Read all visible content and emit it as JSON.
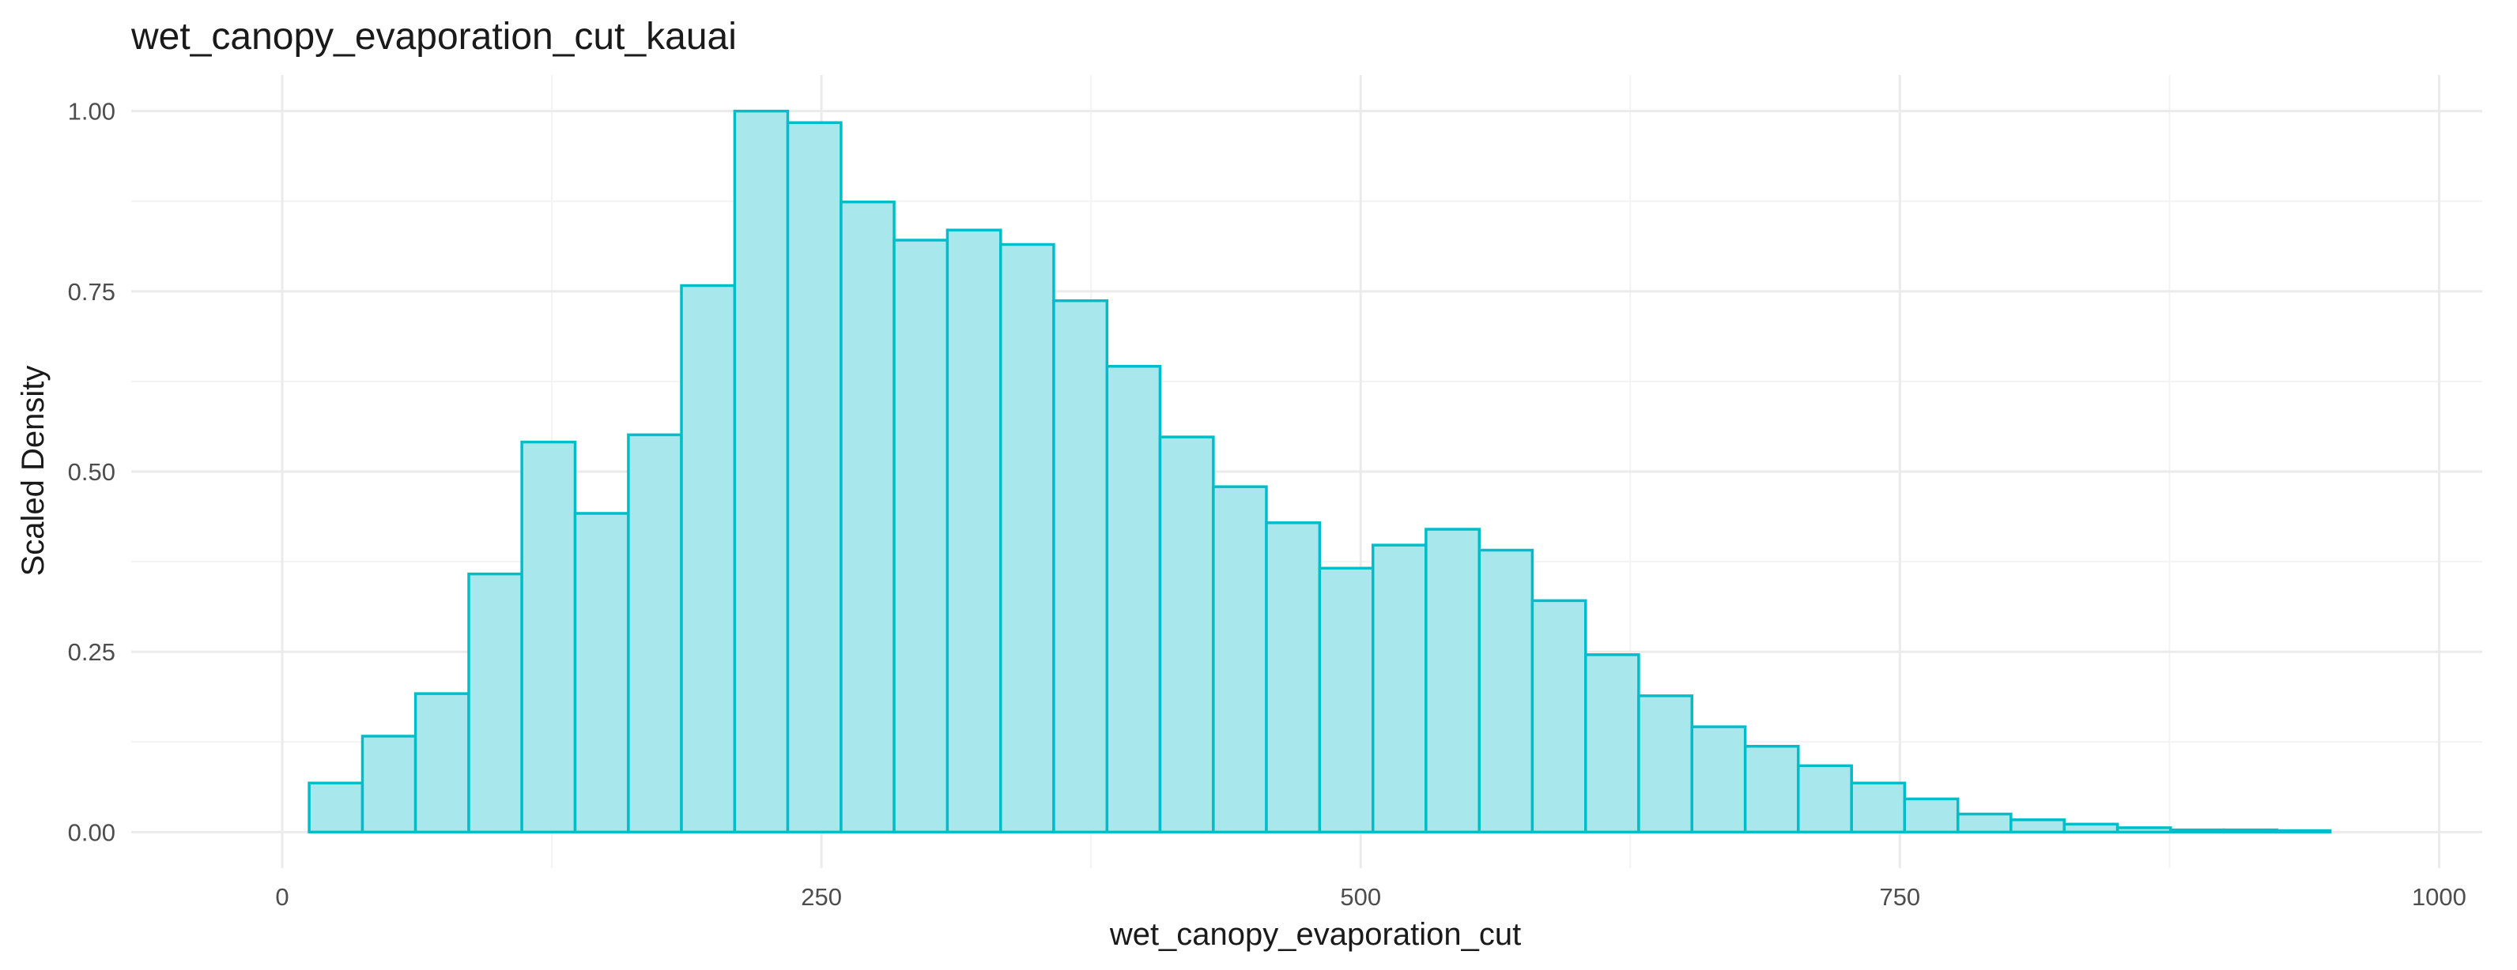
{
  "chart_data": {
    "type": "bar",
    "title": "wet_canopy_evaporation_cut_kauai",
    "xlabel": "wet_canopy_evaporation_cut",
    "ylabel": "Scaled Density",
    "xlim": [
      -70,
      1020
    ],
    "ylim": [
      -0.05,
      1.05
    ],
    "x_ticks": [
      0,
      250,
      500,
      750,
      1000
    ],
    "x_tick_labels": [
      "0",
      "250",
      "500",
      "750",
      "1000"
    ],
    "y_ticks": [
      0,
      0.25,
      0.5,
      0.75,
      1.0
    ],
    "y_tick_labels": [
      "0.00",
      "0.25",
      "0.50",
      "0.75",
      "1.00"
    ],
    "x_minor_ticks": [
      125,
      375,
      625,
      875
    ],
    "y_minor_ticks": [
      0.125,
      0.375,
      0.625,
      0.875
    ],
    "grid": true,
    "bar_fill": "#a8e8ec",
    "bar_stroke": "#00bdc9",
    "bins": [
      {
        "x0": 12.5,
        "x1": 37.2,
        "value": 0.068
      },
      {
        "x0": 37.2,
        "x1": 61.8,
        "value": 0.133
      },
      {
        "x0": 61.8,
        "x1": 86.5,
        "value": 0.192
      },
      {
        "x0": 86.5,
        "x1": 111.1,
        "value": 0.358
      },
      {
        "x0": 111.1,
        "x1": 135.8,
        "value": 0.541
      },
      {
        "x0": 135.8,
        "x1": 160.5,
        "value": 0.442
      },
      {
        "x0": 160.5,
        "x1": 185.1,
        "value": 0.551
      },
      {
        "x0": 185.1,
        "x1": 209.8,
        "value": 0.758
      },
      {
        "x0": 209.8,
        "x1": 234.4,
        "value": 1.0
      },
      {
        "x0": 234.4,
        "x1": 259.1,
        "value": 0.984
      },
      {
        "x0": 259.1,
        "x1": 283.7,
        "value": 0.874
      },
      {
        "x0": 283.7,
        "x1": 308.4,
        "value": 0.821
      },
      {
        "x0": 308.4,
        "x1": 333.1,
        "value": 0.835
      },
      {
        "x0": 333.1,
        "x1": 357.7,
        "value": 0.815
      },
      {
        "x0": 357.7,
        "x1": 382.4,
        "value": 0.737
      },
      {
        "x0": 382.4,
        "x1": 407.0,
        "value": 0.646
      },
      {
        "x0": 407.0,
        "x1": 431.7,
        "value": 0.548
      },
      {
        "x0": 431.7,
        "x1": 456.3,
        "value": 0.479
      },
      {
        "x0": 456.3,
        "x1": 481.0,
        "value": 0.429
      },
      {
        "x0": 481.0,
        "x1": 505.7,
        "value": 0.366
      },
      {
        "x0": 505.7,
        "x1": 530.3,
        "value": 0.398
      },
      {
        "x0": 530.3,
        "x1": 555.0,
        "value": 0.42
      },
      {
        "x0": 555.0,
        "x1": 579.6,
        "value": 0.391
      },
      {
        "x0": 579.6,
        "x1": 604.3,
        "value": 0.321
      },
      {
        "x0": 604.3,
        "x1": 628.9,
        "value": 0.246
      },
      {
        "x0": 628.9,
        "x1": 653.6,
        "value": 0.189
      },
      {
        "x0": 653.6,
        "x1": 678.3,
        "value": 0.146
      },
      {
        "x0": 678.3,
        "x1": 702.9,
        "value": 0.119
      },
      {
        "x0": 702.9,
        "x1": 727.6,
        "value": 0.092
      },
      {
        "x0": 727.6,
        "x1": 752.2,
        "value": 0.068
      },
      {
        "x0": 752.2,
        "x1": 776.9,
        "value": 0.046
      },
      {
        "x0": 776.9,
        "x1": 801.5,
        "value": 0.025
      },
      {
        "x0": 801.5,
        "x1": 826.2,
        "value": 0.017
      },
      {
        "x0": 826.2,
        "x1": 850.9,
        "value": 0.011
      },
      {
        "x0": 850.9,
        "x1": 875.5,
        "value": 0.006
      },
      {
        "x0": 875.5,
        "x1": 900.2,
        "value": 0.003
      },
      {
        "x0": 900.2,
        "x1": 924.8,
        "value": 0.003
      },
      {
        "x0": 924.8,
        "x1": 949.5,
        "value": 0.002
      }
    ]
  }
}
